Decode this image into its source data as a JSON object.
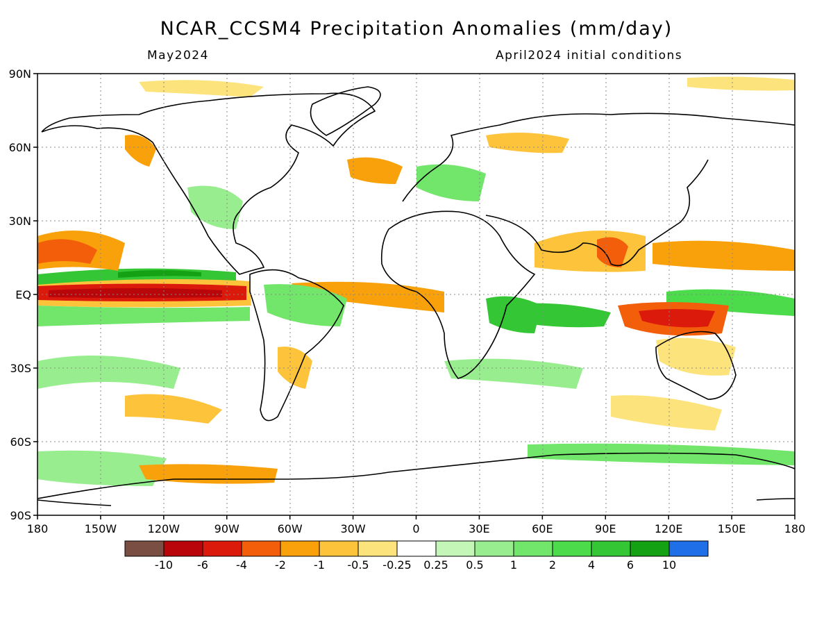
{
  "title": "NCAR_CCSM4 Precipitation Anomalies (mm/day)",
  "valid_month": "May2024",
  "init_conditions": "April2024 initial conditions",
  "lat_labels": [
    "90N",
    "60N",
    "30N",
    "EQ",
    "30S",
    "60S",
    "90S"
  ],
  "lon_labels": [
    "180",
    "150W",
    "120W",
    "90W",
    "60W",
    "30W",
    "0",
    "30E",
    "60E",
    "90E",
    "120E",
    "150E",
    "180"
  ],
  "legend": {
    "colors": [
      "#7b4e44",
      "#b9060b",
      "#dc1a0c",
      "#f25e0a",
      "#f9a10b",
      "#fdc33b",
      "#fde37b",
      "#ffffff",
      "#c4f7b7",
      "#98ee8e",
      "#72e56b",
      "#4cdb4a",
      "#34c634",
      "#14a114",
      "#1f6fe8"
    ],
    "labels": [
      "-10",
      "-6",
      "-4",
      "-2",
      "-1",
      "-0.5",
      "-0.25",
      "0.25",
      "0.5",
      "1",
      "2",
      "4",
      "6",
      "10"
    ]
  }
}
